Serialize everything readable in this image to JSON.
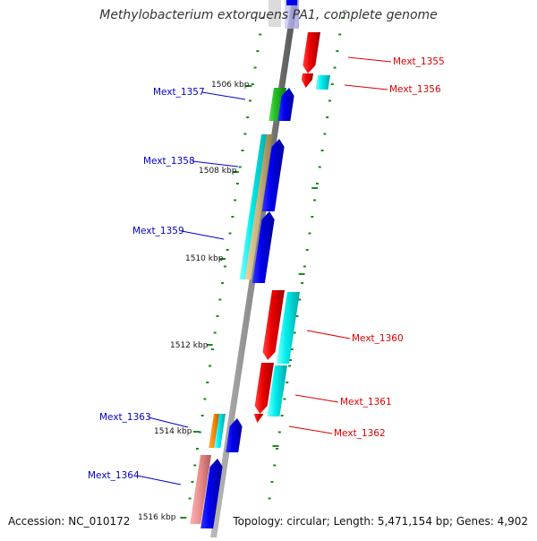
{
  "title": "Methylobacterium extorquens PA1, complete genome",
  "footer": {
    "accession": "Accession: NC_010172",
    "topology": "Topology: circular; Length: 5,471,154 bp; Genes: 4,902"
  },
  "kbp_ticks": [
    "1506 kbp",
    "1508 kbp",
    "1510 kbp",
    "1512 kbp",
    "1514 kbp",
    "1516 kbp"
  ],
  "gene_labels_left": [
    "Mext_1357",
    "Mext_1358",
    "Mext_1359",
    "Mext_1363",
    "Mext_1364"
  ],
  "gene_labels_right": [
    "Mext_1355",
    "Mext_1356",
    "Mext_1360",
    "Mext_1361",
    "Mext_1362"
  ],
  "colors": {
    "forward_label": "#0000cc",
    "reverse_label": "#dd0000",
    "tick": "#1a8a1a",
    "blue": "#0000ee",
    "red": "#ee0000",
    "cyan": "#00eeee",
    "green": "#22bb22",
    "tan": "#c8b27a",
    "orange": "#ff8800",
    "pink": "#e88a8a"
  }
}
